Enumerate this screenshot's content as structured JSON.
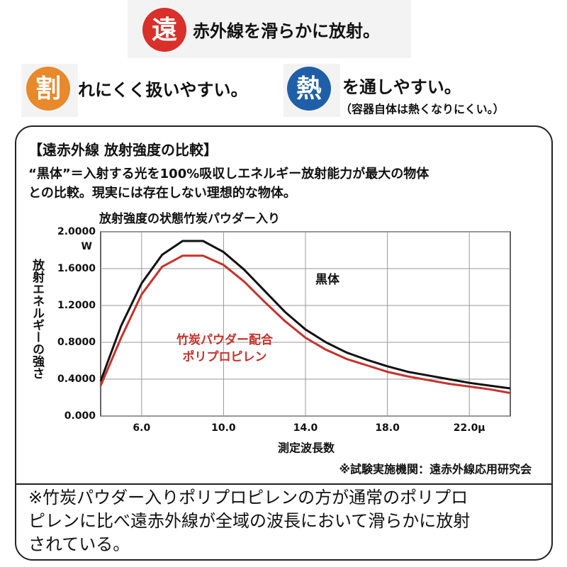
{
  "features": [
    {
      "icon": "遠",
      "text": [
        "赤外線を滑らかに放射。"
      ]
    },
    {
      "icon": "割",
      "text": [
        "れにくく扱いやすい。"
      ]
    },
    {
      "icon": "熱",
      "text": [
        "を通しやすい。",
        "（容器自体は熱くなりにくい。）"
      ]
    }
  ],
  "box": {
    "heading": "【遠赤外線 放射強度の比較】",
    "description": [
      "“黒体”＝入射する光を100%吸収しエネルギー放射能力が最大の物体",
      "との比較。現実には存在しない理想的な物体。"
    ],
    "source": "※試験実施機関：遠赤外線応用研究会",
    "note": [
      "※竹炭パウダー入りポリプロピレンの方が通常のポリプロ",
      "ピレンに比べ遠赤外線が全域の波長において滑らかに放射",
      "されている。"
    ]
  },
  "chart_data": {
    "type": "line",
    "title": "放射強度の状態竹炭パウダー入り",
    "xlabel": "測定波長数",
    "ylabel": "放射エネルギーの強さ",
    "y_unit": "W",
    "x": [
      4,
      5,
      6,
      7,
      8,
      9,
      10,
      11,
      12,
      13,
      14,
      15,
      16,
      17,
      18,
      19,
      20,
      21,
      22,
      23,
      24
    ],
    "series": [
      {
        "name": [
          "黒体"
        ],
        "color": "#111111",
        "values": [
          0.38,
          0.98,
          1.44,
          1.75,
          1.9,
          1.9,
          1.78,
          1.59,
          1.36,
          1.13,
          0.94,
          0.8,
          0.69,
          0.61,
          0.54,
          0.48,
          0.44,
          0.4,
          0.36,
          0.33,
          0.3
        ]
      },
      {
        "name": [
          "竹炭パウダー配合",
          "ポリプロピレン"
        ],
        "color": "#c8312b",
        "values": [
          0.33,
          0.85,
          1.32,
          1.62,
          1.74,
          1.74,
          1.64,
          1.46,
          1.24,
          1.03,
          0.85,
          0.72,
          0.62,
          0.55,
          0.48,
          0.43,
          0.39,
          0.35,
          0.32,
          0.29,
          0.25
        ]
      }
    ],
    "xlim": [
      4,
      24
    ],
    "ylim": [
      0,
      2
    ],
    "xticks": [
      {
        "value": 6,
        "label": "6.0"
      },
      {
        "value": 10,
        "label": "10.0"
      },
      {
        "value": 14,
        "label": "14.0"
      },
      {
        "value": 18,
        "label": "18.0"
      },
      {
        "value": 22,
        "label": "22.0μ"
      }
    ],
    "yticks": [
      {
        "value": 0,
        "label": "0.000"
      },
      {
        "value": 0.4,
        "label": "0.4000"
      },
      {
        "value": 0.8,
        "label": "0.8000"
      },
      {
        "value": 1.2,
        "label": "1.2000"
      },
      {
        "value": 1.6,
        "label": "1.6000"
      },
      {
        "value": 2,
        "label": "2.0000"
      }
    ],
    "grid": true
  }
}
